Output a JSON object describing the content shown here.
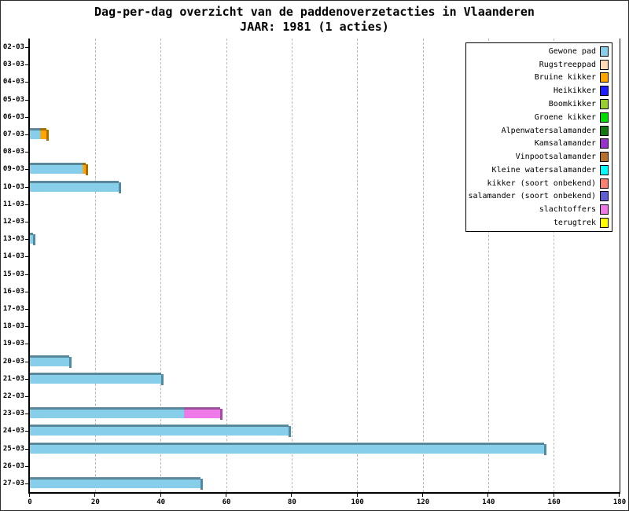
{
  "title": {
    "line1": "Dag-per-dag overzicht van de paddenoverzetacties in Vlaanderen",
    "line2": "JAAR: 1981 (1 acties)"
  },
  "legend": {
    "position": "top-right",
    "items": [
      {
        "label": "Gewone pad",
        "color": "#87CEEB"
      },
      {
        "label": "Rugstreeppad",
        "color": "#FFDAB9"
      },
      {
        "label": "Bruine kikker",
        "color": "#FFA500"
      },
      {
        "label": "Heikikker",
        "color": "#1E1EFF"
      },
      {
        "label": "Boomkikker",
        "color": "#9ACD32"
      },
      {
        "label": "Groene kikker",
        "color": "#00DD00"
      },
      {
        "label": "Alpenwatersalamander",
        "color": "#137813"
      },
      {
        "label": "Kamsalamander",
        "color": "#9932CC"
      },
      {
        "label": "Vinpootsalamander",
        "color": "#B5712D"
      },
      {
        "label": "Kleine watersalamander",
        "color": "#00FFFF"
      },
      {
        "label": "kikker (soort onbekend)",
        "color": "#FA8072"
      },
      {
        "label": "salamander (soort onbekend)",
        "color": "#5F5FD3"
      },
      {
        "label": "slachtoffers",
        "color": "#EE7AE9"
      },
      {
        "label": "terugtrek",
        "color": "#FFFF00"
      }
    ]
  },
  "chart_data": {
    "type": "bar",
    "orientation": "horizontal",
    "stacked": true,
    "title": "Dag-per-dag overzicht van de paddenoverzetacties in Vlaanderen",
    "subtitle": "JAAR: 1981 (1 acties)",
    "xlabel": "",
    "ylabel": "",
    "xlim": [
      0,
      180
    ],
    "x_ticks": [
      0,
      20,
      40,
      60,
      80,
      100,
      120,
      140,
      160,
      180
    ],
    "grid": "vertical dashed gridlines every 20 units",
    "legend_position": "top-right",
    "categories": [
      "02-03",
      "03-03",
      "04-03",
      "05-03",
      "06-03",
      "07-03",
      "08-03",
      "09-03",
      "10-03",
      "11-03",
      "12-03",
      "13-03",
      "14-03",
      "15-03",
      "16-03",
      "17-03",
      "18-03",
      "19-03",
      "20-03",
      "21-03",
      "22-03",
      "23-03",
      "24-03",
      "25-03",
      "26-03",
      "27-03"
    ],
    "series": [
      {
        "name": "Gewone pad",
        "color": "#87CEEB",
        "values": [
          0,
          0,
          0,
          0,
          0,
          3,
          0,
          16,
          27,
          0,
          0,
          1,
          0,
          0,
          0,
          0,
          0,
          0,
          12,
          40,
          0,
          47,
          79,
          157,
          0,
          52
        ]
      },
      {
        "name": "Bruine kikker",
        "color": "#FFA500",
        "values": [
          0,
          0,
          0,
          0,
          0,
          2,
          0,
          1,
          0,
          0,
          0,
          0,
          0,
          0,
          0,
          0,
          0,
          0,
          0,
          0,
          0,
          0,
          0,
          0,
          0,
          0
        ]
      },
      {
        "name": "slachtoffers",
        "color": "#EE7AE9",
        "values": [
          0,
          0,
          0,
          0,
          0,
          0,
          0,
          0,
          0,
          0,
          0,
          0,
          0,
          0,
          0,
          0,
          0,
          0,
          0,
          0,
          0,
          11,
          0,
          0,
          0,
          0
        ]
      }
    ]
  }
}
